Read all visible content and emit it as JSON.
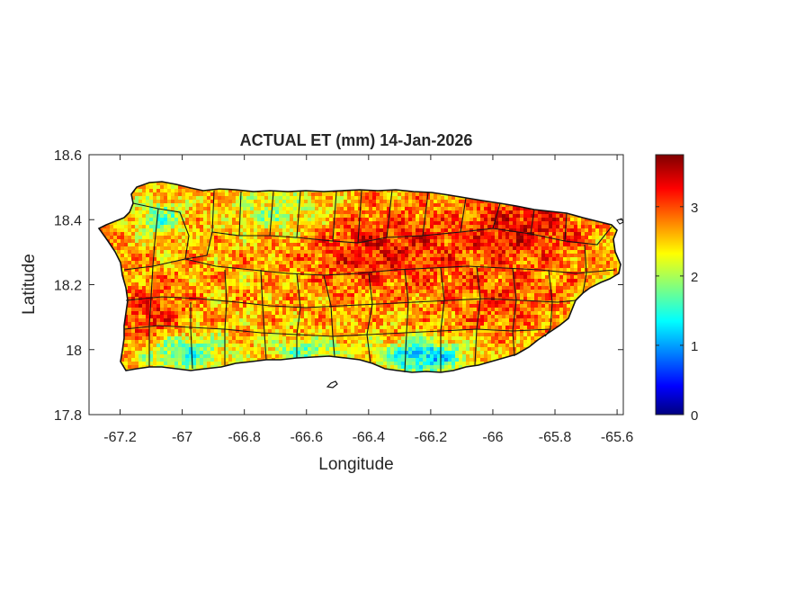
{
  "figure": {
    "title": "ACTUAL ET (mm) 14-Jan-2026",
    "xlabel": "Longitude",
    "ylabel": "Latitude"
  },
  "chart_data": {
    "type": "heatmap",
    "title": "ACTUAL ET (mm) 14-Jan-2026",
    "xlabel": "Longitude",
    "ylabel": "Latitude",
    "xlim": [
      -67.3,
      -65.58
    ],
    "ylim": [
      17.8,
      18.6
    ],
    "xticks": [
      -67.2,
      -67,
      -66.8,
      -66.6,
      -66.4,
      -66.2,
      -66,
      -65.8,
      -65.6
    ],
    "xtick_labels": [
      "-67.2",
      "-67",
      "-66.8",
      "-66.6",
      "-66.4",
      "-66.2",
      "-66",
      "-65.8",
      "-65.6"
    ],
    "yticks": [
      17.8,
      18,
      18.2,
      18.4,
      18.6
    ],
    "ytick_labels": [
      "17.8",
      "18",
      "18.2",
      "18.4",
      "18.6"
    ],
    "colorbar": {
      "colormap": "jet",
      "clim": [
        0,
        3.75
      ],
      "ticks": [
        0,
        1,
        2,
        3
      ],
      "tick_labels": [
        "0",
        "1",
        "2",
        "3"
      ]
    },
    "grid": false
  }
}
